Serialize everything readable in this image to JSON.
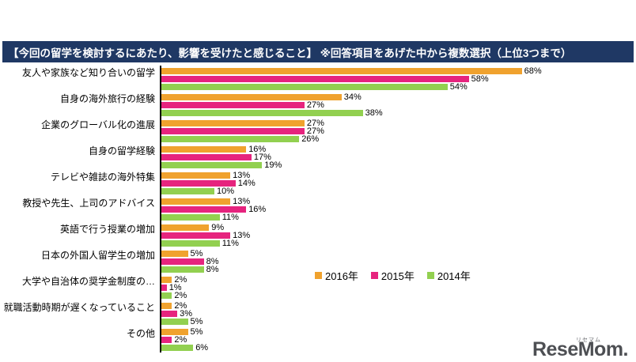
{
  "header": {
    "title": "【今回の留学を検討するにあたり、影響を受けたと感じること】 ※回答項目をあげた中から複数選択（上位3つまで）"
  },
  "chart_data": {
    "type": "bar",
    "orientation": "horizontal",
    "title": "今回の留学を検討するにあたり、影響を受けたと感じること",
    "note": "回答項目をあげた中から複数選択（上位3つまで）",
    "value_suffix": "%",
    "xlim": [
      0,
      70
    ],
    "grid": false,
    "legend_position": "center-right",
    "categories": [
      "友人や家族など知り合いの留学",
      "自身の海外旅行の経験",
      "企業のグローバル化の進展",
      "自身の留学経験",
      "テレビや雑誌の海外特集",
      "教授や先生、上司のアドバイス",
      "英語で行う授業の増加",
      "日本の外国人留学生の増加",
      "大学や自治体の奨学金制度の…",
      "就職活動時期が遅くなっていること",
      "その他"
    ],
    "series": [
      {
        "name": "2016年",
        "color": "#F0A22E",
        "values": [
          68,
          34,
          27,
          16,
          13,
          13,
          9,
          5,
          2,
          2,
          5
        ]
      },
      {
        "name": "2015年",
        "color": "#E6247E",
        "values": [
          58,
          27,
          27,
          17,
          14,
          16,
          13,
          8,
          1,
          3,
          2
        ]
      },
      {
        "name": "2014年",
        "color": "#92D050",
        "values": [
          54,
          38,
          26,
          19,
          10,
          11,
          11,
          8,
          2,
          5,
          6
        ]
      }
    ]
  },
  "colors": {
    "header_bg": "#1F3864",
    "axis": "#000000"
  },
  "logo": {
    "wordmark": "ReseMom.",
    "ruby": "リセマム"
  }
}
